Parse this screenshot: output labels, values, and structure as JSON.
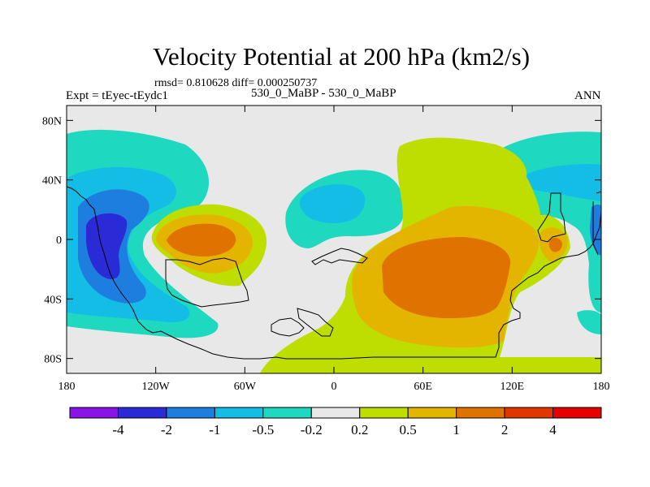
{
  "chart_data": {
    "type": "contour-map",
    "title": "Velocity Potential at 200 hPa (km2/s)",
    "stats": "rmsd= 0.810628 diff= 0.000250737",
    "experiment": "Expt = tEyec-tEydc1",
    "comparison": "530_0_MaBP - 530_0_MaBP",
    "season": "ANN",
    "x_ticks": [
      "180",
      "120W",
      "60W",
      "0",
      "60E",
      "120E",
      "180"
    ],
    "y_ticks": [
      "80N",
      "40N",
      "0",
      "40S",
      "80S"
    ],
    "colorbar": {
      "labels": [
        "-4",
        "-2",
        "-1",
        "-0.5",
        "-0.2",
        "0.2",
        "0.5",
        "1",
        "2",
        "4"
      ],
      "colors": [
        "#8a14e6",
        "#2a2ad6",
        "#1e7ee0",
        "#13bde6",
        "#1ed8c0",
        "#e8e8e8",
        "#bedd00",
        "#e3b500",
        "#e07200",
        "#e23600",
        "#e60000"
      ]
    },
    "colors": {
      "neutral": "#e8e8e8",
      "teal": "#1ed8c0",
      "cyan": "#13bde6",
      "blue": "#1e7ee0",
      "dark_blue": "#2a2ad6",
      "green": "#bedd00",
      "yellow": "#e3b500",
      "orange": "#e07200"
    }
  }
}
